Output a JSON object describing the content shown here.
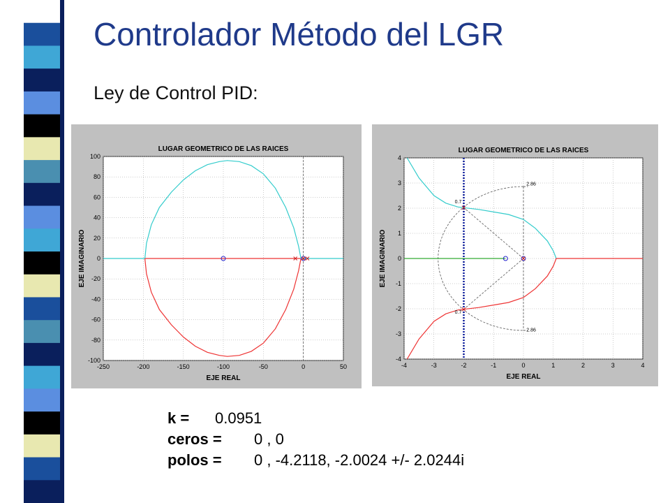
{
  "slide": {
    "title": "Controlador Método del LGR",
    "subtitle": "Ley de Control PID:"
  },
  "stripe_colors": [
    "#ffffff",
    "#1a4f9c",
    "#3fa7d6",
    "#0a1f5c",
    "#5b8ee0",
    "#000000",
    "#e8e8b0",
    "#4a8fb0",
    "#0a1f5c",
    "#5b8ee0",
    "#3fa7d6",
    "#000000",
    "#e8e8b0",
    "#1a4f9c",
    "#4a8fb0",
    "#0a1f5c",
    "#3fa7d6",
    "#5b8ee0",
    "#000000",
    "#e8e8b0",
    "#1a4f9c",
    "#0a1f5c"
  ],
  "results": {
    "k_label": "k =",
    "k_value": "0.0951",
    "ceros_label": "ceros =",
    "ceros_value": "0 ,   0",
    "polos_label": "polos =",
    "polos_value": "0 ,   -4.2118,   -2.0024 +/- 2.0244i"
  },
  "chart_data": [
    {
      "type": "line",
      "title": "LUGAR GEOMETRICO DE LAS RAICES",
      "xlabel": "EJE REAL",
      "ylabel": "EJE IMAGINARIO",
      "xlim": [
        -250,
        50
      ],
      "ylim": [
        -100,
        100
      ],
      "xticks": [
        -250,
        -200,
        -150,
        -100,
        -50,
        0,
        50
      ],
      "xtick_labels": [
        "-250",
        "-200",
        "-150",
        "-100",
        "-50",
        "0",
        "50"
      ],
      "yticks": [
        -100,
        -80,
        -60,
        -40,
        -20,
        0,
        20,
        40,
        60,
        80,
        100
      ],
      "ytick_labels": [
        "-100",
        "-80",
        "-60",
        "-40",
        "-20",
        "0",
        "20",
        "40",
        "60",
        "80",
        "100"
      ],
      "grid": true,
      "series": [
        {
          "color": "#33cccc",
          "x": [
            -250,
            -198
          ],
          "y": [
            0,
            0
          ]
        },
        {
          "color": "#ee3333",
          "x": [
            -198,
            -4
          ],
          "y": [
            0,
            0
          ]
        },
        {
          "color": "#33cccc",
          "x": [
            -198,
            -196,
            -190,
            -180,
            -165,
            -150,
            -135,
            -120,
            -105,
            -95,
            -80,
            -65,
            -50,
            -35,
            -22,
            -12,
            -6,
            -3
          ],
          "y": [
            0,
            15,
            33,
            50,
            65,
            77,
            86,
            92,
            95,
            96,
            95,
            91,
            83,
            69,
            50,
            30,
            12,
            0
          ]
        },
        {
          "color": "#ee3333",
          "x": [
            -198,
            -196,
            -190,
            -180,
            -165,
            -150,
            -135,
            -120,
            -105,
            -95,
            -80,
            -65,
            -50,
            -35,
            -22,
            -12,
            -6,
            -3
          ],
          "y": [
            0,
            -15,
            -33,
            -50,
            -65,
            -77,
            -86,
            -92,
            -95,
            -96,
            -95,
            -91,
            -83,
            -69,
            -50,
            -30,
            -12,
            0
          ]
        },
        {
          "color": "#33cccc",
          "x": [
            0,
            50
          ],
          "y": [
            0,
            0
          ]
        }
      ],
      "zeros": [
        [
          -100,
          0
        ],
        [
          0,
          0
        ]
      ],
      "poles": [
        [
          -10,
          0
        ],
        [
          0,
          0
        ],
        [
          5,
          0
        ]
      ],
      "guides": {
        "vertical_x": 0,
        "zero_line_y": 0
      }
    },
    {
      "type": "line",
      "title": "LUGAR GEOMETRICO DE LAS RAICES",
      "xlabel": "EJE REAL",
      "ylabel": "EJE IMAGINARIO",
      "xlim": [
        -4,
        4
      ],
      "ylim": [
        -4,
        4
      ],
      "xticks": [
        -4,
        -3,
        -2,
        -1,
        0,
        1,
        2,
        3,
        4
      ],
      "xtick_labels": [
        "-4",
        "-3",
        "-2",
        "-1",
        "0",
        "1",
        "2",
        "3",
        "4"
      ],
      "yticks": [
        -4,
        -3,
        -2,
        -1,
        0,
        1,
        2,
        3,
        4
      ],
      "ytick_labels": [
        "-4",
        "-3",
        "-2",
        "-1",
        "0",
        "1",
        "2",
        "3",
        "4"
      ],
      "grid": true,
      "series": [
        {
          "color": "#33cccc",
          "x": [
            -3.9,
            -3.5,
            -3.0,
            -2.6,
            -2.2,
            -2.0
          ],
          "y": [
            4,
            3.2,
            2.5,
            2.2,
            2.05,
            2.02
          ]
        },
        {
          "color": "#33cccc",
          "x": [
            -2.0,
            -1.5,
            -1.0,
            -0.5,
            0,
            0.4,
            0.8,
            1.0,
            1.1
          ],
          "y": [
            2.02,
            1.95,
            1.85,
            1.75,
            1.55,
            1.2,
            0.7,
            0.3,
            0
          ]
        },
        {
          "color": "#ee3333",
          "x": [
            -3.9,
            -3.5,
            -3.0,
            -2.6,
            -2.2,
            -2.0
          ],
          "y": [
            -4,
            -3.2,
            -2.5,
            -2.2,
            -2.05,
            -2.02
          ]
        },
        {
          "color": "#ee3333",
          "x": [
            -2.0,
            -1.5,
            -1.0,
            -0.5,
            0,
            0.4,
            0.8,
            1.0,
            1.1
          ],
          "y": [
            -2.02,
            -1.95,
            -1.85,
            -1.75,
            -1.55,
            -1.2,
            -0.7,
            -0.3,
            0
          ]
        },
        {
          "color": "#33aa33",
          "x": [
            -4,
            -0.6
          ],
          "y": [
            0,
            0
          ]
        },
        {
          "color": "#ee3333",
          "x": [
            1.1,
            4
          ],
          "y": [
            0,
            0
          ]
        }
      ],
      "zeros": [
        [
          -0.6,
          0
        ],
        [
          0,
          0
        ]
      ],
      "poles": [
        [
          0,
          0
        ],
        [
          -2.0,
          2.02
        ],
        [
          -2.0,
          -2.02
        ]
      ],
      "design_line_x": -2,
      "damping_rays": [
        [
          -2.0,
          2.02
        ],
        [
          -2.0,
          -2.02
        ]
      ],
      "wn_radius": 2.86,
      "annotations": [
        {
          "text": "2.86",
          "x": 0.1,
          "y": 2.9
        },
        {
          "text": "2.86",
          "x": 0.1,
          "y": -2.9
        },
        {
          "text": "0.7",
          "x": -2.3,
          "y": 2.2
        },
        {
          "text": "0.7",
          "x": -2.3,
          "y": -2.2
        }
      ]
    }
  ]
}
